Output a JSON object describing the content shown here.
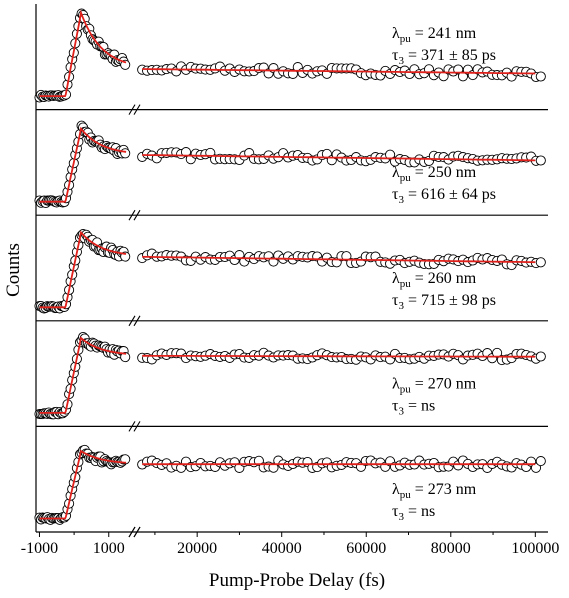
{
  "chart_data": {
    "type": "scatter",
    "xlabel": "Pump-Probe Delay (fs)",
    "ylabel": "Counts",
    "x_axis_break": true,
    "x_segments": [
      {
        "xlim": [
          -1100,
          1700
        ],
        "ticks": [
          -1000,
          1000
        ],
        "tick_labels": [
          "-1000",
          "1000"
        ]
      },
      {
        "xlim": [
          6000,
          103000
        ],
        "ticks": [
          20000,
          40000,
          60000,
          80000,
          100000
        ],
        "tick_labels": [
          "20000",
          "40000",
          "60000",
          "80000",
          "100000"
        ]
      }
    ],
    "fit_color": "#e0201b",
    "series": [
      {
        "name": "241 nm",
        "label_line1_sym": "λ",
        "label_line1_sub": "pu",
        "label_line1_val": " = 241 nm",
        "label_line2_sym": "τ",
        "label_line2_sub": "3",
        "label_line2_val": " = 371 ± 85 ps",
        "peak": 0.97,
        "plateau": 0.37,
        "early_decay": 0.45,
        "long_slope": -0.05
      },
      {
        "name": "250 nm",
        "label_line1_sym": "λ",
        "label_line1_sub": "pu",
        "label_line1_val": " = 250 nm",
        "label_line2_sym": "τ",
        "label_line2_sub": "3",
        "label_line2_val": " = 616 ± 64 ps",
        "peak": 0.86,
        "plateau": 0.58,
        "early_decay": 0.22,
        "long_slope": -0.06
      },
      {
        "name": "260 nm",
        "label_line1_sym": "λ",
        "label_line1_sub": "pu",
        "label_line1_val": " = 260 nm",
        "label_line2_sym": "τ",
        "label_line2_sub": "3",
        "label_line2_val": " = 715 ± 98 ps",
        "peak": 0.88,
        "plateau": 0.62,
        "early_decay": 0.22,
        "long_slope": -0.06
      },
      {
        "name": "270 nm",
        "label_line1_sym": "λ",
        "label_line1_sub": "pu",
        "label_line1_val": " = 270 nm",
        "label_line2_sym": "τ",
        "label_line2_sub": "3",
        "label_line2_val": " = ns",
        "peak": 0.88,
        "plateau": 0.69,
        "early_decay": 0.14,
        "long_slope": -0.01
      },
      {
        "name": "273 nm",
        "label_line1_sym": "λ",
        "label_line1_sub": "pu",
        "label_line1_val": " = 273 nm",
        "label_line2_sym": "τ",
        "label_line2_sub": "3",
        "label_line2_val": " = ns",
        "peak": 0.8,
        "plateau": 0.66,
        "early_decay": 0.12,
        "long_slope": 0.0
      }
    ]
  }
}
